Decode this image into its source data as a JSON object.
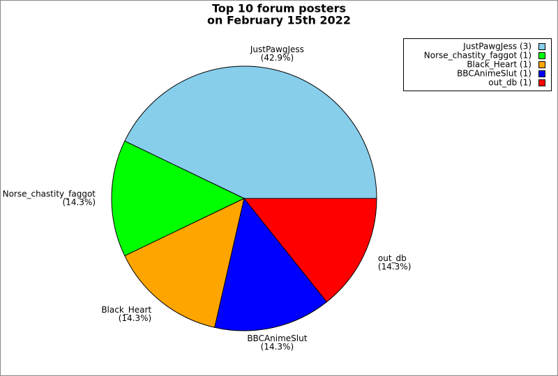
{
  "chart_data": {
    "type": "pie",
    "title": [
      "Top 10 forum posters",
      "on February 15th 2022"
    ],
    "categories": [
      "JustPawgJess",
      "Norse_chastity_faggot",
      "Black_Heart",
      "BBCAnimeSlut",
      "out_db"
    ],
    "values": [
      42.9,
      14.3,
      14.3,
      14.3,
      14.3
    ],
    "value_labels": [
      "(42.9%)",
      "(14.3%)",
      "(14.3%)",
      "(14.3%)",
      "(14.3%)"
    ],
    "legend_labels": [
      "JustPawgJess (3)",
      "Norse_chastity_faggot (1)",
      "Black_Heart (1)",
      "BBCAnimeSlut (1)",
      "out_db (1)"
    ],
    "colors": [
      "#87ceeb",
      "#00ff00",
      "#ffa500",
      "#0000ff",
      "#ff0000"
    ],
    "legend": "upper right"
  }
}
